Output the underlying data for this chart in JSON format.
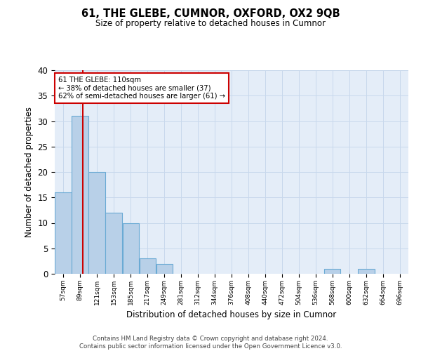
{
  "title1": "61, THE GLEBE, CUMNOR, OXFORD, OX2 9QB",
  "title2": "Size of property relative to detached houses in Cumnor",
  "xlabel": "Distribution of detached houses by size in Cumnor",
  "ylabel": "Number of detached properties",
  "footer1": "Contains HM Land Registry data © Crown copyright and database right 2024.",
  "footer2": "Contains public sector information licensed under the Open Government Licence v3.0.",
  "bins": [
    57,
    89,
    121,
    153,
    185,
    217,
    249,
    281,
    312,
    344,
    376,
    408,
    440,
    472,
    504,
    536,
    568,
    600,
    632,
    664,
    696
  ],
  "bar_values": [
    16,
    31,
    20,
    12,
    10,
    3,
    2,
    0,
    0,
    0,
    0,
    0,
    0,
    0,
    0,
    0,
    1,
    0,
    1,
    0,
    0
  ],
  "bar_color": "#b8d0e8",
  "bar_edge_color": "#6aaad4",
  "grid_color": "#c8d8ec",
  "bg_color": "#e4edf8",
  "vline_x": 110,
  "vline_color": "#cc0000",
  "annotation_text": "61 THE GLEBE: 110sqm\n← 38% of detached houses are smaller (37)\n62% of semi-detached houses are larger (61) →",
  "annotation_box_color": "#cc0000",
  "ylim": [
    0,
    40
  ],
  "yticks": [
    0,
    5,
    10,
    15,
    20,
    25,
    30,
    35,
    40
  ]
}
